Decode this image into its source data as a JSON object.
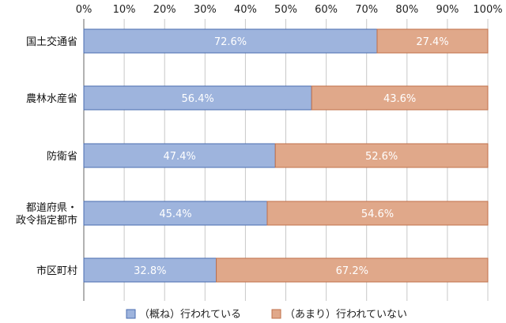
{
  "chart_data": {
    "type": "bar",
    "orientation": "horizontal",
    "stacked": true,
    "title": "",
    "xlabel": "",
    "ylabel": "",
    "xlim": [
      0,
      100
    ],
    "x_tick_suffix": "%",
    "x_ticks": [
      0,
      10,
      20,
      30,
      40,
      50,
      60,
      70,
      80,
      90,
      100
    ],
    "grid": "vertical",
    "legend_position": "bottom",
    "categories": [
      [
        "国土交通省"
      ],
      [
        "農林水産省"
      ],
      [
        "防衛省"
      ],
      [
        "都道府県・",
        "政令指定都市"
      ],
      [
        "市区町村"
      ]
    ],
    "series": [
      {
        "name": "（概ね）行われている",
        "color": "#9eb4dd",
        "border": "#4a6db0",
        "label_color": "#ffffff",
        "values": [
          72.6,
          56.4,
          47.4,
          45.4,
          32.8
        ]
      },
      {
        "name": "（あまり）行われていない",
        "color": "#e0a88a",
        "border": "#c0704a",
        "label_color": "#ffffff",
        "values": [
          27.4,
          43.6,
          52.6,
          54.6,
          67.2
        ]
      }
    ]
  }
}
